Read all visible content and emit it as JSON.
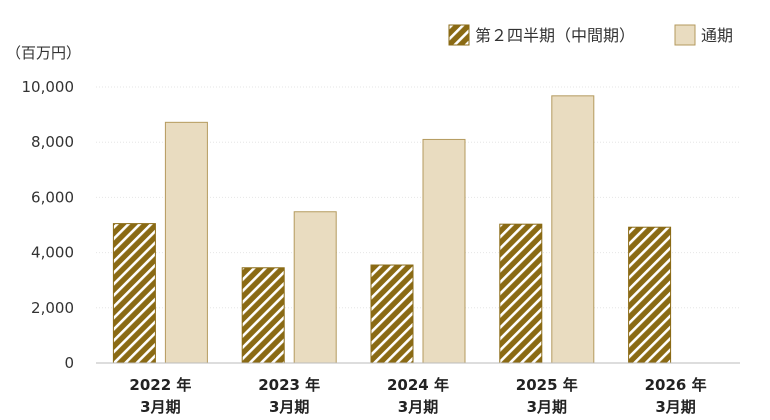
{
  "chart_data": {
    "type": "bar",
    "unit_label": "（百万円）",
    "categories": [
      [
        "2022 年",
        "3月期"
      ],
      [
        "2023 年",
        "3月期"
      ],
      [
        "2024 年",
        "3月期"
      ],
      [
        "2025 年",
        "3月期"
      ],
      [
        "2026 年",
        "3月期"
      ]
    ],
    "series": [
      {
        "name": "第２四半期（中間期）",
        "pattern": "hatched",
        "values": [
          5050,
          3450,
          3550,
          5030,
          4920
        ]
      },
      {
        "name": "通期",
        "pattern": "solid",
        "values": [
          8720,
          5480,
          8100,
          9680,
          null
        ]
      }
    ],
    "ylim": [
      0,
      10000
    ],
    "yticks": [
      0,
      2000,
      4000,
      6000,
      8000,
      10000
    ],
    "ytick_labels": [
      "0",
      "2,000",
      "4,000",
      "6,000",
      "8,000",
      "10,000"
    ],
    "grid": true,
    "legend_position": "top-right",
    "colors": {
      "hatch_fill": "#8a6a14",
      "hatch_stripe": "#ffffff",
      "solid_fill": "#e9dcc0",
      "solid_border": "#b49a5e",
      "grid": "#e6e6e6",
      "axis": "#bbbbbb"
    }
  }
}
